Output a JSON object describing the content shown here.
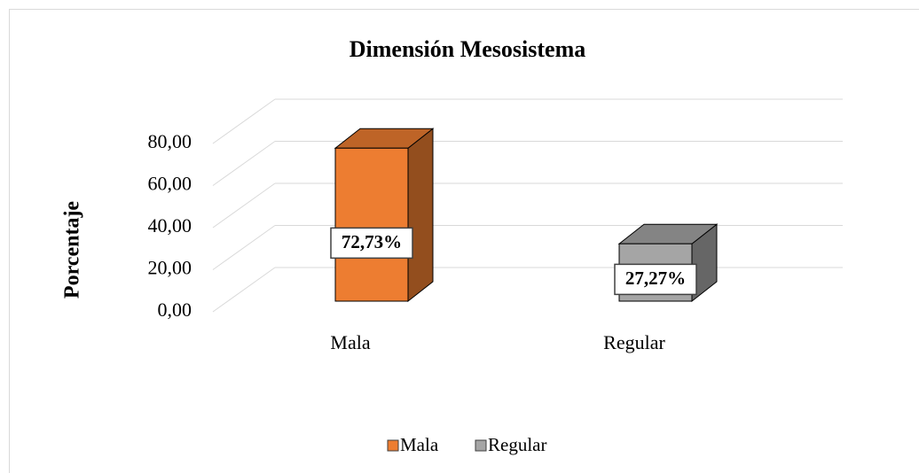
{
  "chart_data": {
    "type": "bar3d",
    "title": "Dimensión Mesosistema",
    "y_label": "Porcentaje",
    "categories": [
      "Mala",
      "Regular"
    ],
    "values": [
      72.73,
      27.27
    ],
    "value_labels": [
      "72,73%",
      "27,27%"
    ],
    "colors": [
      "#ed7d31",
      "#a5a5a5"
    ],
    "ylim": [
      0,
      80
    ],
    "yticks": [
      {
        "value": 0,
        "label": "0,00"
      },
      {
        "value": 20,
        "label": "20,00"
      },
      {
        "value": 40,
        "label": "40,00"
      },
      {
        "value": 60,
        "label": "60,00"
      },
      {
        "value": 80,
        "label": "80,00"
      }
    ],
    "grid": true,
    "legend": "bottom"
  }
}
